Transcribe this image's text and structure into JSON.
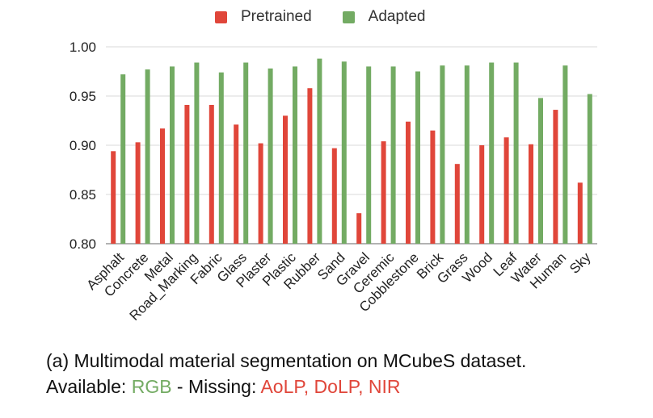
{
  "chart_data": {
    "type": "bar",
    "categories": [
      "Asphalt",
      "Concrete",
      "Metal",
      "Road_Marking",
      "Fabric",
      "Glass",
      "Plaster",
      "Plastic",
      "Rubber",
      "Sand",
      "Gravel",
      "Ceremic",
      "Cobblestone",
      "Brick",
      "Grass",
      "Wood",
      "Leaf",
      "Water",
      "Human",
      "Sky"
    ],
    "series": [
      {
        "name": "Pretrained",
        "color": "#e0463a",
        "values": [
          0.894,
          0.903,
          0.917,
          0.941,
          0.941,
          0.921,
          0.902,
          0.93,
          0.958,
          0.897,
          0.831,
          0.904,
          0.924,
          0.915,
          0.881,
          0.9,
          0.908,
          0.901,
          0.936,
          0.862
        ]
      },
      {
        "name": "Adapted",
        "color": "#73ab63",
        "values": [
          0.972,
          0.977,
          0.98,
          0.984,
          0.974,
          0.984,
          0.978,
          0.98,
          0.988,
          0.985,
          0.98,
          0.98,
          0.975,
          0.981,
          0.981,
          0.984,
          0.984,
          0.948,
          0.981,
          0.952
        ]
      }
    ],
    "yticks": [
      "0.80",
      "0.85",
      "0.90",
      "0.95",
      "1.00"
    ],
    "ylim": [
      0.8,
      1.0
    ],
    "grid": true,
    "legend": "top-center",
    "title": "",
    "xlabel": "",
    "ylabel": ""
  },
  "caption": {
    "line1": "(a) Multimodal material segmentation on MCubeS dataset.",
    "available_label": "Available: ",
    "available_value": "RGB",
    "missing_label": " - Missing: ",
    "missing_value": "AoLP, DoLP, NIR",
    "available_color": "#73ab63",
    "missing_color": "#e0463a"
  }
}
